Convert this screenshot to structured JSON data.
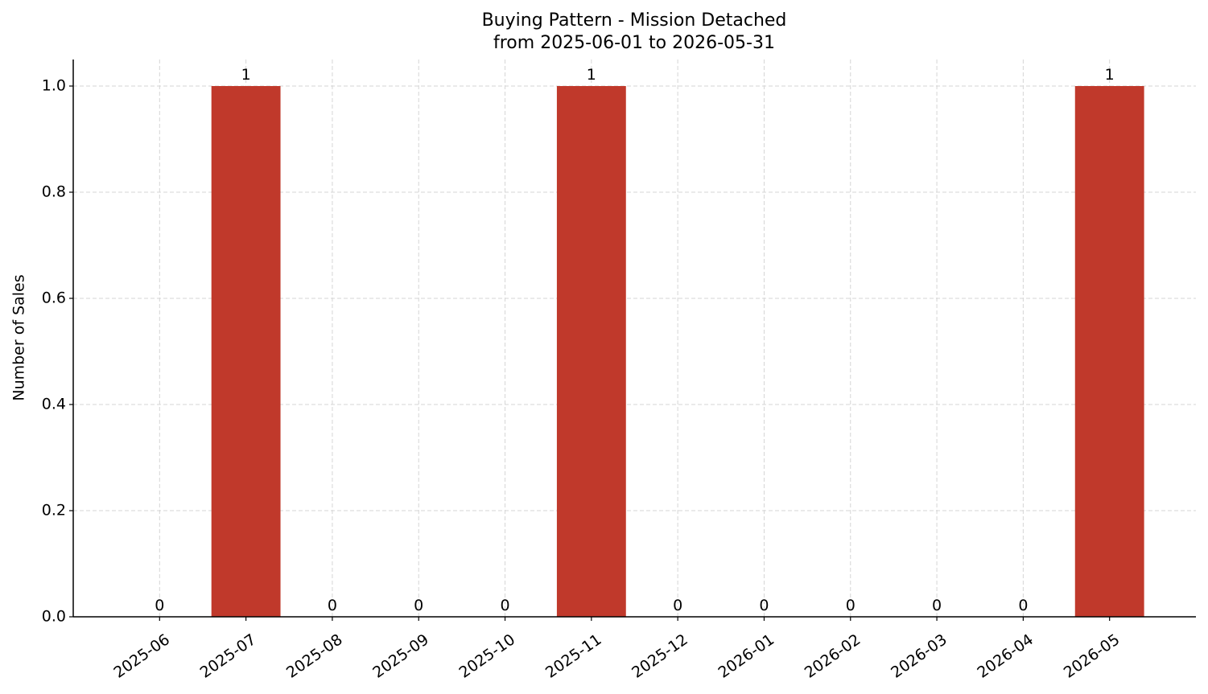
{
  "chart_data": {
    "type": "bar",
    "title": "Buying Pattern - Mission Detached",
    "subtitle": "from 2025-06-01 to 2026-05-31",
    "y_label": "Number of Sales",
    "categories": [
      "2025-06",
      "2025-07",
      "2025-08",
      "2025-09",
      "2025-10",
      "2025-11",
      "2025-12",
      "2026-01",
      "2026-02",
      "2026-03",
      "2026-04",
      "2026-05"
    ],
    "values": [
      0,
      1,
      0,
      0,
      0,
      1,
      0,
      0,
      0,
      0,
      0,
      1
    ],
    "color": "#c0392b",
    "ylim": [
      0,
      1.05
    ],
    "yticks": [
      {
        "value": 0,
        "label": "0.0"
      },
      0.2,
      0.4,
      0.6,
      0.8,
      {
        "value": 1,
        "label": "1.0"
      }
    ],
    "grid": true
  }
}
